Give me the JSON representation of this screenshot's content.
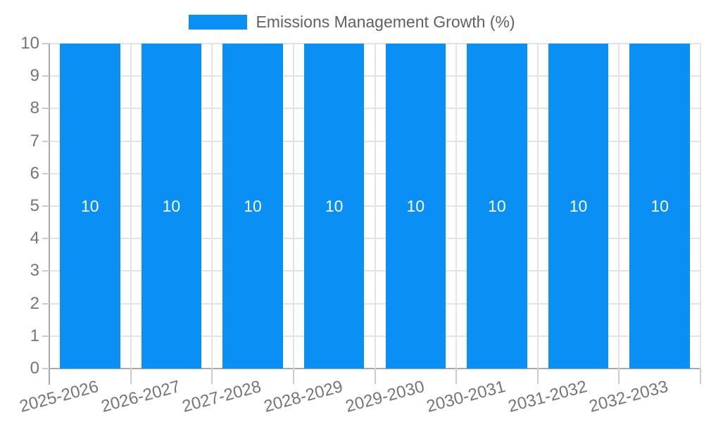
{
  "legend": {
    "label": "Emissions Management Growth (%)",
    "swatch_color": "#0a90f5"
  },
  "chart_data": {
    "type": "bar",
    "title": "Emissions Management Growth (%)",
    "categories": [
      "2025-2026",
      "2026-2027",
      "2027-2028",
      "2028-2029",
      "2029-2030",
      "2030-2031",
      "2031-2032",
      "2032-2033"
    ],
    "series": [
      {
        "name": "Emissions Management Growth (%)",
        "values": [
          10,
          10,
          10,
          10,
          10,
          10,
          10,
          10
        ]
      }
    ],
    "bar_labels": [
      "10",
      "10",
      "10",
      "10",
      "10",
      "10",
      "10",
      "10"
    ],
    "xlabel": "",
    "ylabel": "",
    "ylim": [
      0,
      10
    ],
    "yticks": [
      "0",
      "1",
      "2",
      "3",
      "4",
      "5",
      "6",
      "7",
      "8",
      "9",
      "10"
    ],
    "grid": true,
    "legend_position": "top",
    "bar_color": "#0a90f5"
  },
  "colors": {
    "bar": "#0a90f5",
    "gridline": "#e3e3e3",
    "axis": "#a8a8a8",
    "tick": "#cccccc",
    "axis_label_text": "#757575",
    "legend_text": "#616161",
    "bar_label_text": "#ffffff",
    "background": "#ffffff"
  }
}
